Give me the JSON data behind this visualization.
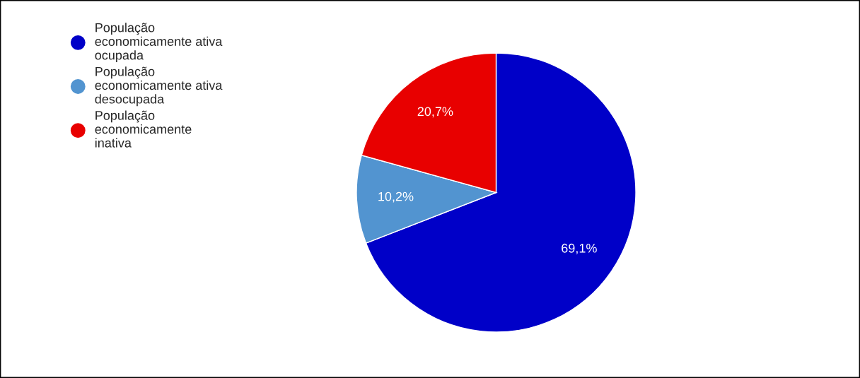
{
  "chart_data": {
    "type": "pie",
    "categories": [
      "População economicamente ativa ocupada",
      "População economicamente ativa desocupada",
      "População economicamente inativa"
    ],
    "values": [
      69.1,
      10.2,
      20.7
    ],
    "colors": [
      "#0000c8",
      "#5294d0",
      "#e80000"
    ],
    "value_labels": [
      "69,1%",
      "10,2%",
      "20,7%"
    ],
    "legend": "top left"
  }
}
